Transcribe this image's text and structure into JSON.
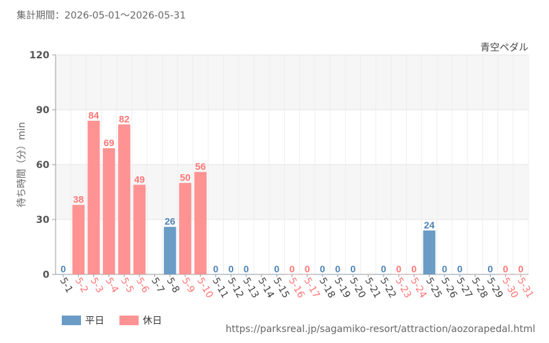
{
  "header": {
    "period_label": "集計期間：2026-05-01〜2026-05-31"
  },
  "footer": {
    "source_url": "https://parksreal.jp/sagamiko-resort/attraction/aozorapedal.html"
  },
  "legend": {
    "weekday_label": "平日",
    "holiday_label": "休日",
    "weekday_color": "#6a9cc6",
    "holiday_color": "#ff9393"
  },
  "chart_data": {
    "type": "bar",
    "series_label": "青空ペダル",
    "ylabel": "待ち時間（分）min",
    "ylim": [
      0,
      120
    ],
    "yticks": [
      0,
      30,
      60,
      90,
      120
    ],
    "categories": [
      "5-1",
      "5-2",
      "5-3",
      "5-4",
      "5-5",
      "5-6",
      "5-7",
      "5-8",
      "5-9",
      "5-10",
      "5-11",
      "5-12",
      "5-13",
      "5-14",
      "5-15",
      "5-16",
      "5-17",
      "5-18",
      "5-19",
      "5-20",
      "5-21",
      "5-22",
      "5-23",
      "5-24",
      "5-25",
      "5-26",
      "5-27",
      "5-28",
      "5-29",
      "5-30",
      "5-31"
    ],
    "values": [
      0,
      38,
      84,
      69,
      82,
      49,
      null,
      26,
      50,
      56,
      0,
      0,
      0,
      null,
      0,
      0,
      0,
      0,
      0,
      0,
      null,
      0,
      0,
      0,
      24,
      0,
      0,
      null,
      0,
      0,
      0
    ],
    "day_type": [
      "weekday",
      "holiday",
      "holiday",
      "holiday",
      "holiday",
      "holiday",
      "weekday",
      "weekday",
      "holiday",
      "holiday",
      "weekday",
      "weekday",
      "weekday",
      "weekday",
      "weekday",
      "holiday",
      "holiday",
      "weekday",
      "weekday",
      "weekday",
      "weekday",
      "weekday",
      "holiday",
      "holiday",
      "weekday",
      "weekday",
      "weekday",
      "weekday",
      "weekday",
      "holiday",
      "holiday"
    ],
    "grid": true,
    "legend_position": "bottom-left"
  }
}
